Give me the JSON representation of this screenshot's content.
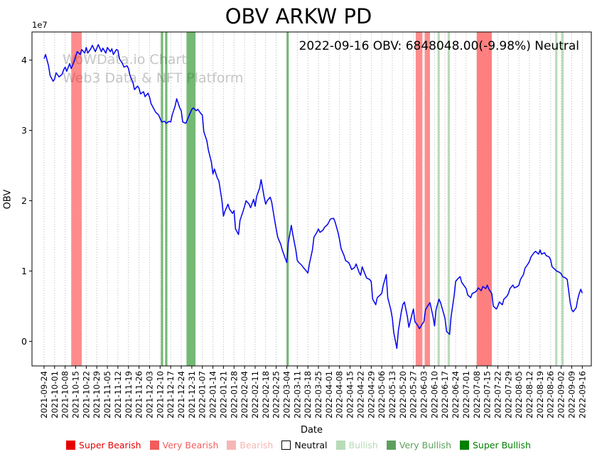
{
  "title": "OBV ARKW PD",
  "annotation": "2022-09-16 OBV: 6848048.00(-9.98%) Neutral",
  "watermark": {
    "line1": "WoWData.io Chart",
    "line2": "Web3 Data & NFT Platform"
  },
  "axes": {
    "ylabel": "OBV",
    "xlabel": "Date",
    "offset_text": "1e7"
  },
  "legend": [
    {
      "label": "Super Bearish",
      "color": "#e60000",
      "text_color": "#e60000",
      "border": "#e60000"
    },
    {
      "label": "Very Bearish",
      "color": "#f25c5c",
      "text_color": "#f25c5c",
      "border": "#f25c5c"
    },
    {
      "label": "Bearish",
      "color": "#f7b6b6",
      "text_color": "#f7b6b6",
      "border": "#f7b6b6"
    },
    {
      "label": "Neutral",
      "color": "#ffffff",
      "text_color": "#000000",
      "border": "#000000"
    },
    {
      "label": "Bullish",
      "color": "#b7dcb7",
      "text_color": "#b7dcb7",
      "border": "#b7dcb7"
    },
    {
      "label": "Very Bullish",
      "color": "#5da05d",
      "text_color": "#5da05d",
      "border": "#5da05d"
    },
    {
      "label": "Super Bullish",
      "color": "#008000",
      "text_color": "#008000",
      "border": "#008000"
    }
  ],
  "chart_data": {
    "type": "line",
    "series_name": "OBV",
    "line_color": "#0000ee",
    "y_unit": "1e7",
    "last_value": 6848048,
    "ylim": [
      -0.35,
      4.4
    ],
    "xlim_days": [
      -8,
      363
    ],
    "y_ticks": [
      0,
      1,
      2,
      3,
      4
    ],
    "grid": "dotted vertical gridlines at each weekly tick",
    "legend_position": "bottom",
    "x_tick_labels": [
      "2021-09-24",
      "2021-10-01",
      "2021-10-08",
      "2021-10-15",
      "2021-10-22",
      "2021-10-29",
      "2021-11-05",
      "2021-11-12",
      "2021-11-19",
      "2021-11-26",
      "2021-12-03",
      "2021-12-10",
      "2021-12-17",
      "2021-12-24",
      "2021-12-31",
      "2022-01-07",
      "2022-01-14",
      "2022-01-21",
      "2022-01-28",
      "2022-02-04",
      "2022-02-11",
      "2022-02-18",
      "2022-02-25",
      "2022-03-04",
      "2022-03-11",
      "2022-03-18",
      "2022-03-25",
      "2022-04-01",
      "2022-04-08",
      "2022-04-15",
      "2022-04-22",
      "2022-04-29",
      "2022-05-06",
      "2022-05-13",
      "2022-05-20",
      "2022-05-27",
      "2022-06-03",
      "2022-06-10",
      "2022-06-17",
      "2022-06-24",
      "2022-07-01",
      "2022-07-08",
      "2022-07-15",
      "2022-07-22",
      "2022-07-29",
      "2022-08-05",
      "2022-08-12",
      "2022-08-19",
      "2022-08-26",
      "2022-09-02",
      "2022-09-09",
      "2022-09-16"
    ],
    "bands": [
      {
        "start_day": 18,
        "end_day": 25,
        "signal": "very_bearish",
        "color": "rgba(255,0,0,0.45)"
      },
      {
        "start_day": 77.5,
        "end_day": 79,
        "signal": "very_bullish",
        "color": "rgba(0,128,0,0.55)"
      },
      {
        "start_day": 80.3,
        "end_day": 81.8,
        "signal": "very_bullish",
        "color": "rgba(0,128,0,0.55)"
      },
      {
        "start_day": 94.5,
        "end_day": 100.5,
        "signal": "very_bullish",
        "color": "rgba(0,128,0,0.55)"
      },
      {
        "start_day": 160.8,
        "end_day": 162.3,
        "signal": "very_bullish",
        "color": "rgba(0,128,0,0.55)"
      },
      {
        "start_day": 246.5,
        "end_day": 251,
        "signal": "very_bearish",
        "color": "rgba(255,0,0,0.45)"
      },
      {
        "start_day": 252.5,
        "end_day": 256,
        "signal": "very_bearish",
        "color": "rgba(255,0,0,0.45)"
      },
      {
        "start_day": 261,
        "end_day": 262.5,
        "signal": "bullish",
        "color": "rgba(0,128,0,0.28)"
      },
      {
        "start_day": 267.7,
        "end_day": 269.2,
        "signal": "bullish",
        "color": "rgba(0,128,0,0.28)"
      },
      {
        "start_day": 287,
        "end_day": 297,
        "signal": "very_bearish",
        "color": "rgba(255,0,0,0.5)"
      },
      {
        "start_day": 339,
        "end_day": 340.5,
        "signal": "bullish",
        "color": "rgba(0,128,0,0.28)"
      },
      {
        "start_day": 343.2,
        "end_day": 344.7,
        "signal": "bullish",
        "color": "rgba(0,128,0,0.28)"
      }
    ],
    "points": [
      [
        0,
        4.02
      ],
      [
        1,
        4.08
      ],
      [
        3,
        3.92
      ],
      [
        4,
        3.78
      ],
      [
        6,
        3.7
      ],
      [
        7,
        3.73
      ],
      [
        8,
        3.82
      ],
      [
        10,
        3.76
      ],
      [
        12,
        3.8
      ],
      [
        13,
        3.86
      ],
      [
        14,
        3.9
      ],
      [
        15,
        3.84
      ],
      [
        17,
        3.95
      ],
      [
        18,
        3.88
      ],
      [
        20,
        3.98
      ],
      [
        21,
        4.05
      ],
      [
        22,
        4.12
      ],
      [
        24,
        4.08
      ],
      [
        25,
        4.15
      ],
      [
        27,
        4.1
      ],
      [
        28,
        4.18
      ],
      [
        29,
        4.1
      ],
      [
        31,
        4.16
      ],
      [
        32,
        4.21
      ],
      [
        34,
        4.12
      ],
      [
        36,
        4.22
      ],
      [
        38,
        4.12
      ],
      [
        39,
        4.17
      ],
      [
        41,
        4.1
      ],
      [
        42,
        4.18
      ],
      [
        44,
        4.12
      ],
      [
        45,
        4.16
      ],
      [
        46,
        4.08
      ],
      [
        48,
        4.15
      ],
      [
        49,
        4.14
      ],
      [
        50,
        4.02
      ],
      [
        52,
        3.95
      ],
      [
        53,
        3.9
      ],
      [
        55,
        3.92
      ],
      [
        56,
        3.88
      ],
      [
        57,
        3.78
      ],
      [
        59,
        3.68
      ],
      [
        60,
        3.58
      ],
      [
        62,
        3.63
      ],
      [
        63,
        3.6
      ],
      [
        64,
        3.52
      ],
      [
        66,
        3.55
      ],
      [
        67,
        3.48
      ],
      [
        69,
        3.53
      ],
      [
        70,
        3.47
      ],
      [
        71,
        3.38
      ],
      [
        73,
        3.3
      ],
      [
        74,
        3.26
      ],
      [
        76,
        3.22
      ],
      [
        77,
        3.17
      ],
      [
        78,
        3.12
      ],
      [
        80,
        3.13
      ],
      [
        81,
        3.1
      ],
      [
        83,
        3.13
      ],
      [
        84,
        3.12
      ],
      [
        85,
        3.22
      ],
      [
        87,
        3.35
      ],
      [
        88,
        3.45
      ],
      [
        90,
        3.32
      ],
      [
        91,
        3.28
      ],
      [
        92,
        3.12
      ],
      [
        94,
        3.1
      ],
      [
        95,
        3.15
      ],
      [
        97,
        3.25
      ],
      [
        98,
        3.3
      ],
      [
        99,
        3.32
      ],
      [
        101,
        3.28
      ],
      [
        102,
        3.3
      ],
      [
        104,
        3.24
      ],
      [
        105,
        3.22
      ],
      [
        106,
        2.98
      ],
      [
        108,
        2.85
      ],
      [
        109,
        2.72
      ],
      [
        111,
        2.55
      ],
      [
        112,
        2.38
      ],
      [
        113,
        2.45
      ],
      [
        115,
        2.32
      ],
      [
        116,
        2.28
      ],
      [
        118,
        2.0
      ],
      [
        119,
        1.78
      ],
      [
        120,
        1.85
      ],
      [
        122,
        1.95
      ],
      [
        123,
        1.88
      ],
      [
        125,
        1.82
      ],
      [
        126,
        1.86
      ],
      [
        127,
        1.6
      ],
      [
        129,
        1.52
      ],
      [
        130,
        1.72
      ],
      [
        132,
        1.85
      ],
      [
        133,
        1.92
      ],
      [
        134,
        2.0
      ],
      [
        136,
        1.95
      ],
      [
        137,
        1.9
      ],
      [
        139,
        2.02
      ],
      [
        140,
        1.92
      ],
      [
        141,
        2.06
      ],
      [
        143,
        2.18
      ],
      [
        144,
        2.3
      ],
      [
        146,
        2.05
      ],
      [
        147,
        1.95
      ],
      [
        148,
        2.0
      ],
      [
        150,
        2.05
      ],
      [
        151,
        1.98
      ],
      [
        153,
        1.72
      ],
      [
        154,
        1.6
      ],
      [
        155,
        1.48
      ],
      [
        157,
        1.38
      ],
      [
        158,
        1.3
      ],
      [
        160,
        1.18
      ],
      [
        161,
        1.12
      ],
      [
        162,
        1.4
      ],
      [
        164,
        1.65
      ],
      [
        165,
        1.52
      ],
      [
        167,
        1.3
      ],
      [
        168,
        1.15
      ],
      [
        169,
        1.12
      ],
      [
        171,
        1.08
      ],
      [
        172,
        1.05
      ],
      [
        174,
        1.0
      ],
      [
        175,
        0.97
      ],
      [
        176,
        1.1
      ],
      [
        178,
        1.3
      ],
      [
        179,
        1.48
      ],
      [
        181,
        1.55
      ],
      [
        182,
        1.6
      ],
      [
        183,
        1.55
      ],
      [
        185,
        1.58
      ],
      [
        186,
        1.62
      ],
      [
        188,
        1.66
      ],
      [
        189,
        1.7
      ],
      [
        190,
        1.74
      ],
      [
        192,
        1.75
      ],
      [
        193,
        1.7
      ],
      [
        195,
        1.55
      ],
      [
        196,
        1.45
      ],
      [
        197,
        1.32
      ],
      [
        199,
        1.22
      ],
      [
        200,
        1.15
      ],
      [
        202,
        1.12
      ],
      [
        203,
        1.08
      ],
      [
        204,
        1.02
      ],
      [
        206,
        1.05
      ],
      [
        207,
        1.1
      ],
      [
        209,
        0.98
      ],
      [
        210,
        0.94
      ],
      [
        211,
        1.06
      ],
      [
        213,
        0.95
      ],
      [
        214,
        0.9
      ],
      [
        216,
        0.88
      ],
      [
        217,
        0.85
      ],
      [
        218,
        0.6
      ],
      [
        220,
        0.52
      ],
      [
        221,
        0.62
      ],
      [
        223,
        0.66
      ],
      [
        224,
        0.68
      ],
      [
        225,
        0.8
      ],
      [
        227,
        0.95
      ],
      [
        228,
        0.62
      ],
      [
        230,
        0.45
      ],
      [
        231,
        0.33
      ],
      [
        232,
        0.12
      ],
      [
        234,
        -0.1
      ],
      [
        235,
        0.15
      ],
      [
        237,
        0.42
      ],
      [
        238,
        0.52
      ],
      [
        239,
        0.56
      ],
      [
        241,
        0.35
      ],
      [
        242,
        0.2
      ],
      [
        244,
        0.38
      ],
      [
        245,
        0.46
      ],
      [
        246,
        0.28
      ],
      [
        248,
        0.22
      ],
      [
        249,
        0.18
      ],
      [
        251,
        0.25
      ],
      [
        252,
        0.28
      ],
      [
        253,
        0.45
      ],
      [
        255,
        0.52
      ],
      [
        256,
        0.55
      ],
      [
        258,
        0.35
      ],
      [
        259,
        0.22
      ],
      [
        260,
        0.45
      ],
      [
        262,
        0.6
      ],
      [
        263,
        0.55
      ],
      [
        265,
        0.4
      ],
      [
        266,
        0.32
      ],
      [
        267,
        0.14
      ],
      [
        269,
        0.1
      ],
      [
        270,
        0.35
      ],
      [
        272,
        0.65
      ],
      [
        273,
        0.85
      ],
      [
        274,
        0.88
      ],
      [
        276,
        0.92
      ],
      [
        277,
        0.84
      ],
      [
        279,
        0.78
      ],
      [
        280,
        0.75
      ],
      [
        281,
        0.66
      ],
      [
        283,
        0.62
      ],
      [
        284,
        0.68
      ],
      [
        286,
        0.7
      ],
      [
        287,
        0.72
      ],
      [
        288,
        0.76
      ],
      [
        290,
        0.72
      ],
      [
        291,
        0.78
      ],
      [
        293,
        0.75
      ],
      [
        294,
        0.8
      ],
      [
        295,
        0.74
      ],
      [
        297,
        0.68
      ],
      [
        298,
        0.5
      ],
      [
        300,
        0.46
      ],
      [
        301,
        0.5
      ],
      [
        302,
        0.56
      ],
      [
        304,
        0.52
      ],
      [
        305,
        0.6
      ],
      [
        307,
        0.64
      ],
      [
        308,
        0.68
      ],
      [
        309,
        0.75
      ],
      [
        311,
        0.8
      ],
      [
        312,
        0.76
      ],
      [
        314,
        0.78
      ],
      [
        315,
        0.8
      ],
      [
        316,
        0.88
      ],
      [
        318,
        0.95
      ],
      [
        319,
        1.04
      ],
      [
        321,
        1.1
      ],
      [
        322,
        1.14
      ],
      [
        323,
        1.2
      ],
      [
        325,
        1.26
      ],
      [
        326,
        1.28
      ],
      [
        328,
        1.24
      ],
      [
        329,
        1.3
      ],
      [
        330,
        1.24
      ],
      [
        332,
        1.26
      ],
      [
        333,
        1.22
      ],
      [
        335,
        1.2
      ],
      [
        336,
        1.16
      ],
      [
        337,
        1.06
      ],
      [
        339,
        1.02
      ],
      [
        340,
        1.0
      ],
      [
        342,
        0.98
      ],
      [
        343,
        0.96
      ],
      [
        344,
        0.92
      ],
      [
        346,
        0.9
      ],
      [
        347,
        0.88
      ],
      [
        349,
        0.55
      ],
      [
        350,
        0.45
      ],
      [
        351,
        0.42
      ],
      [
        353,
        0.48
      ],
      [
        354,
        0.6
      ],
      [
        355,
        0.68
      ],
      [
        356,
        0.74
      ],
      [
        357,
        0.6848
      ]
    ]
  }
}
